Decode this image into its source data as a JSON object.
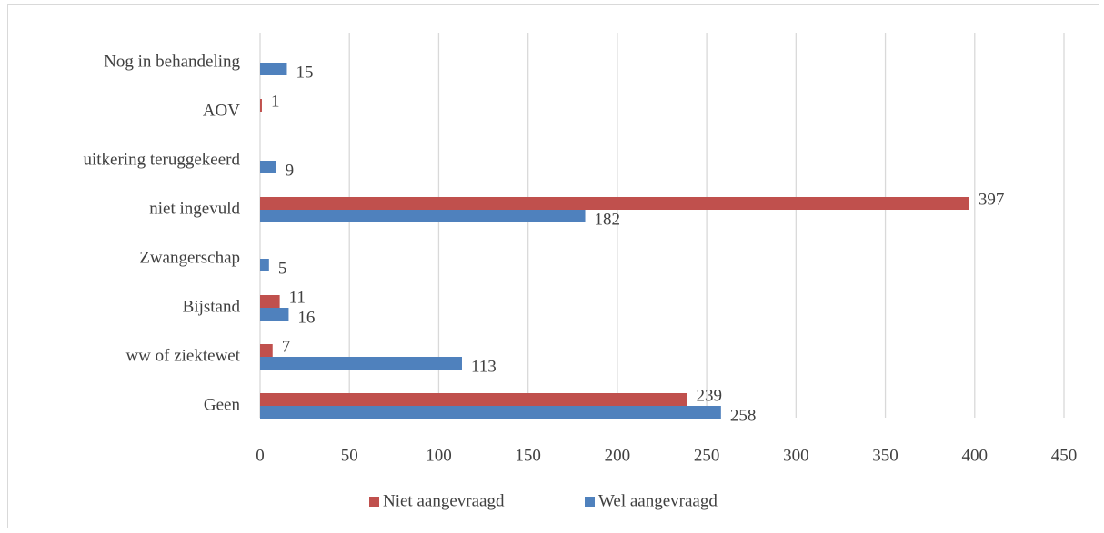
{
  "chart_data": {
    "type": "hbar",
    "categories": [
      "Nog in behandeling",
      "AOV",
      "uitkering teruggekeerd",
      "niet ingevuld",
      "Zwangerschap",
      "Bijstand",
      "ww of ziektewet",
      "Geen"
    ],
    "series": [
      {
        "name": "Niet aangevraagd",
        "color": "#c0504d",
        "values": [
          null,
          1,
          null,
          397,
          null,
          11,
          7,
          239
        ]
      },
      {
        "name": "Wel aangevraagd",
        "color": "#4f81bd",
        "values": [
          15,
          null,
          9,
          182,
          5,
          16,
          113,
          258
        ]
      }
    ],
    "xlim": [
      0,
      450
    ],
    "xticks": [
      0,
      50,
      100,
      150,
      200,
      250,
      300,
      350,
      400,
      450
    ],
    "grid": true,
    "legend": "bottom"
  }
}
